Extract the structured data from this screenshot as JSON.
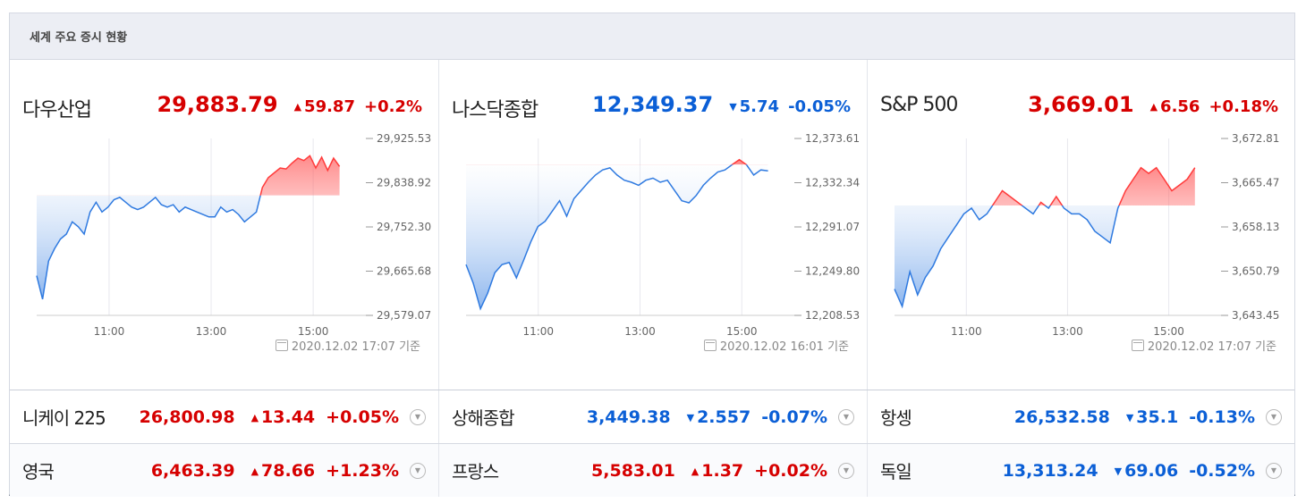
{
  "header": {
    "title": "세계 주요 증시 현황"
  },
  "indices": [
    {
      "name": "다우산업",
      "price": "29,883.79",
      "change": "59.87",
      "pct": "+0.2%",
      "dir": "up",
      "yticks": [
        "29,925.53",
        "29,838.92",
        "29,752.30",
        "29,665.68",
        "29,579.07"
      ],
      "xticks": [
        "11:00",
        "13:00",
        "15:00"
      ],
      "timestamp": "2020.12.02 17:07 기준"
    },
    {
      "name": "나스닥종합",
      "price": "12,349.37",
      "change": "5.74",
      "pct": "-0.05%",
      "dir": "down",
      "yticks": [
        "12,373.61",
        "12,332.34",
        "12,291.07",
        "12,249.80",
        "12,208.53"
      ],
      "xticks": [
        "11:00",
        "13:00",
        "15:00"
      ],
      "timestamp": "2020.12.02 16:01 기준"
    },
    {
      "name": "S&P 500",
      "price": "3,669.01",
      "change": "6.56",
      "pct": "+0.18%",
      "dir": "up",
      "yticks": [
        "3,672.81",
        "3,665.47",
        "3,658.13",
        "3,650.79",
        "3,643.45"
      ],
      "xticks": [
        "11:00",
        "13:00",
        "15:00"
      ],
      "timestamp": "2020.12.02 17:07 기준"
    }
  ],
  "rows": [
    [
      {
        "name": "니케이 225",
        "price": "26,800.98",
        "change": "13.44",
        "pct": "+0.05%",
        "dir": "up"
      },
      {
        "name": "상해종합",
        "price": "3,449.38",
        "change": "2.557",
        "pct": "-0.07%",
        "dir": "down"
      },
      {
        "name": "항셍",
        "price": "26,532.58",
        "change": "35.1",
        "pct": "-0.13%",
        "dir": "down"
      }
    ],
    [
      {
        "name": "영국",
        "price": "6,463.39",
        "change": "78.66",
        "pct": "+1.23%",
        "dir": "up"
      },
      {
        "name": "프랑스",
        "price": "5,583.01",
        "change": "1.37",
        "pct": "+0.02%",
        "dir": "up"
      },
      {
        "name": "독일",
        "price": "13,313.24",
        "change": "69.06",
        "pct": "-0.52%",
        "dir": "down"
      }
    ]
  ],
  "colors": {
    "up": "#d60000",
    "down": "#0b5fd6",
    "up_line": "#ff3b3b",
    "down_line": "#2f7ae0"
  },
  "icons": {
    "up_arrow": "▲",
    "down_arrow": "▼",
    "more": "chevron-down-icon",
    "calendar": "calendar-icon"
  },
  "chart_data": [
    {
      "type": "line",
      "series": [
        {
          "values": [
            29660,
            29612,
            29690,
            29715,
            29735,
            29745,
            29770,
            29760,
            29745,
            29790,
            29810,
            29790,
            29800,
            29815,
            29820,
            29810,
            29800,
            29795,
            29800,
            29810,
            29820,
            29805,
            29800,
            29805,
            29790,
            29800,
            29795,
            29790,
            29785,
            29780,
            29780,
            29800,
            29790,
            29795,
            29785,
            29770,
            29780,
            29790,
            29840,
            29860,
            29870,
            29880,
            29878,
            29890,
            29900,
            29895,
            29905,
            29880,
            29902,
            29875,
            29900,
            29883
          ]
        }
      ],
      "ylim": [
        29579.07,
        29925.53
      ],
      "baseline": 29823.92
    },
    {
      "type": "line",
      "series": [
        {
          "values": [
            12258,
            12240,
            12215,
            12230,
            12250,
            12258,
            12260,
            12245,
            12262,
            12280,
            12295,
            12300,
            12310,
            12320,
            12305,
            12322,
            12330,
            12338,
            12345,
            12350,
            12352,
            12345,
            12340,
            12338,
            12335,
            12340,
            12342,
            12338,
            12340,
            12330,
            12320,
            12318,
            12325,
            12335,
            12342,
            12348,
            12350,
            12355,
            12360,
            12355,
            12345,
            12350,
            12349
          ]
        }
      ],
      "ylim": [
        12208.53,
        12373.61
      ],
      "baseline": 12355.11
    },
    {
      "type": "line",
      "series": [
        {
          "values": [
            3648,
            3645,
            3651,
            3647,
            3650,
            3652,
            3655,
            3657,
            3659,
            3661,
            3662,
            3660,
            3661,
            3663,
            3665,
            3664,
            3663,
            3662,
            3661,
            3663,
            3662,
            3664,
            3662,
            3661,
            3661,
            3660,
            3658,
            3657,
            3656,
            3662,
            3665,
            3667,
            3669,
            3668,
            3669,
            3667,
            3665,
            3666,
            3667,
            3669
          ]
        }
      ],
      "ylim": [
        3643.45,
        3672.81
      ],
      "baseline": 3662.45
    }
  ]
}
